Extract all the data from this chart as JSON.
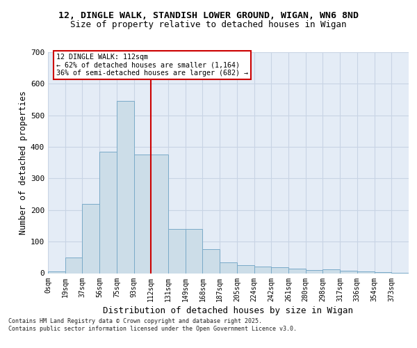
{
  "title1": "12, DINGLE WALK, STANDISH LOWER GROUND, WIGAN, WN6 8ND",
  "title2": "Size of property relative to detached houses in Wigan",
  "xlabel": "Distribution of detached houses by size in Wigan",
  "ylabel": "Number of detached properties",
  "bin_labels": [
    "0sqm",
    "19sqm",
    "37sqm",
    "56sqm",
    "75sqm",
    "93sqm",
    "112sqm",
    "131sqm",
    "149sqm",
    "168sqm",
    "187sqm",
    "205sqm",
    "224sqm",
    "242sqm",
    "261sqm",
    "280sqm",
    "298sqm",
    "317sqm",
    "336sqm",
    "354sqm",
    "373sqm"
  ],
  "bar_heights": [
    5,
    50,
    220,
    385,
    545,
    375,
    375,
    140,
    140,
    75,
    35,
    25,
    20,
    18,
    15,
    10,
    12,
    8,
    5,
    3,
    2
  ],
  "bar_color": "#ccdde8",
  "bar_edge_color": "#7aaac8",
  "grid_color": "#c8d4e4",
  "background_color": "#e4ecf6",
  "vline_color": "#cc0000",
  "vline_x": 6,
  "annotation_text": "12 DINGLE WALK: 112sqm\n← 62% of detached houses are smaller (1,164)\n36% of semi-detached houses are larger (682) →",
  "annotation_box_edge_color": "#cc0000",
  "ylim": [
    0,
    700
  ],
  "yticks": [
    0,
    100,
    200,
    300,
    400,
    500,
    600,
    700
  ],
  "footer": "Contains HM Land Registry data © Crown copyright and database right 2025.\nContains public sector information licensed under the Open Government Licence v3.0."
}
